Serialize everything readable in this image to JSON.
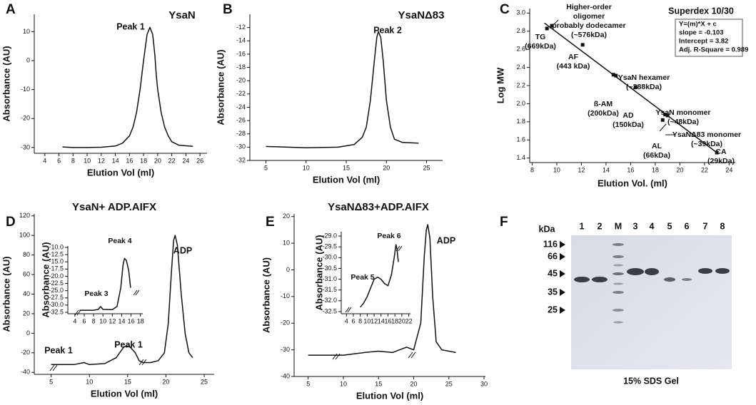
{
  "chart_data": [
    {
      "type": "line",
      "panel_label": "A",
      "title": "YsaN",
      "annotations": [
        "Peak 1"
      ],
      "xlabel": "Elution Vol (ml)",
      "ylabel": "Absorbance (AU)",
      "xlim": [
        2.5,
        27
      ],
      "ylim": [
        -32,
        16
      ],
      "xticks": [
        4,
        6,
        8,
        10,
        12,
        14,
        16,
        18,
        20,
        22,
        24,
        26
      ],
      "yticks": [
        -30,
        -20,
        -10,
        0,
        10
      ],
      "series": [
        {
          "type": "line",
          "color": "#111111",
          "x": [
            6.5,
            8,
            10,
            12,
            14,
            15,
            16,
            16.5,
            17,
            17.5,
            18,
            18.5,
            18.9,
            19.3,
            19.6,
            19.8,
            20,
            20.5,
            21,
            21.5,
            22,
            23,
            25
          ],
          "values": [
            -29.8,
            -30,
            -30,
            -29.9,
            -29.5,
            -28.5,
            -26,
            -23,
            -18,
            -10,
            0,
            9,
            11.5,
            9,
            2,
            -5,
            -10,
            -18,
            -23,
            -26,
            -28,
            -29.2,
            -29.6
          ]
        }
      ]
    },
    {
      "type": "line",
      "panel_label": "B",
      "title": "YsaNΔ83",
      "annotations": [
        "Peak 2"
      ],
      "xlabel": "Elution Vol (ml)",
      "ylabel": "Absorbance (AU)",
      "xlim": [
        3,
        27
      ],
      "ylim": [
        -32,
        -10
      ],
      "xticks": [
        5,
        10,
        15,
        20,
        25
      ],
      "yticks": [
        -32,
        -30,
        -28,
        -26,
        -24,
        -22,
        -20,
        -18,
        -16,
        -14,
        -12
      ],
      "series": [
        {
          "type": "line",
          "color": "#111111",
          "x": [
            5,
            10,
            14,
            16,
            17,
            17.5,
            18,
            18.5,
            18.8,
            19,
            19.3,
            19.6,
            20,
            20.5,
            21,
            22,
            24
          ],
          "values": [
            -29.9,
            -30.1,
            -30,
            -29.6,
            -28.5,
            -27,
            -23,
            -17,
            -13.5,
            -12.6,
            -13.5,
            -17,
            -23,
            -27,
            -28.8,
            -29.3,
            -29.4
          ]
        }
      ]
    },
    {
      "type": "scatter",
      "panel_label": "C",
      "title": "Superdex 10/30",
      "fit_box": [
        "Y=(m)*X + c",
        "slope = -0.103",
        "Intercept = 3.82",
        "Adj. R-Square = 0.989"
      ],
      "xlabel": "Elution Vol. (ml)",
      "ylabel": "Log MW",
      "xlim": [
        7.8,
        24.5
      ],
      "ylim": [
        1.35,
        3.05
      ],
      "xticks": [
        8,
        10,
        12,
        14,
        16,
        18,
        20,
        22,
        24
      ],
      "yticks": [
        1.4,
        1.6,
        1.8,
        {
          "value": 2,
          "label": "2.0"
        },
        2.2,
        2.4,
        2.6,
        2.8,
        {
          "value": 3,
          "label": "3.0"
        }
      ],
      "series": [
        {
          "type": "scatter",
          "color": "#111111",
          "x": [
            9.2,
            9.6,
            12.1,
            14.6,
            14.8,
            16.4,
            18.6,
            18.8,
            19.0,
            23.0
          ],
          "values": [
            2.83,
            2.86,
            2.65,
            2.32,
            2.31,
            2.18,
            1.82,
            1.88,
            1.87,
            1.46
          ]
        },
        {
          "type": "line",
          "color": "#111111",
          "x": [
            9,
            23
          ],
          "values": [
            2.89,
            1.46
          ]
        }
      ],
      "point_labels": [
        [
          "Higher-order",
          "oligomer",
          "probably dodecamer",
          "(~576kDa)"
        ],
        [
          "TG",
          "(669kDa)"
        ],
        [
          "AF",
          "(443 kDa)"
        ],
        [
          "YsaN hexamer",
          "(~288kDa)"
        ],
        [
          "ß-AM",
          "(200kDa)"
        ],
        [
          "AD",
          "(150kDa)"
        ],
        [
          "YsaN monomer",
          "(~48kDa)"
        ],
        [
          "YsaNΔ83 monomer",
          "(~39kDa)"
        ],
        [
          "AL",
          "(66kDa)"
        ],
        [
          "CA",
          "(29kDa)"
        ]
      ]
    },
    {
      "type": "line",
      "panel_label": "D",
      "title": "YsaN+ ADP.AIFX",
      "annotations": [
        "ADP",
        "Peak 1",
        "Peak 1"
      ],
      "xlabel": "Elution Vol (ml)",
      "ylabel": "Absorbance (AU)",
      "xlim": [
        2.8,
        26.3
      ],
      "ylim": [
        -42,
        122
      ],
      "xticks": [
        5,
        10,
        15,
        20,
        25
      ],
      "yticks": [
        -40,
        -20,
        0,
        20,
        40,
        60,
        80,
        100,
        120
      ],
      "series": [
        {
          "type": "line",
          "color": "#111111",
          "x": [
            5,
            8,
            9.3,
            10,
            12,
            13.5,
            14.5,
            15.2,
            16,
            16.5,
            17,
            18,
            19,
            19.8,
            20.3,
            20.7,
            21,
            21.2,
            21.5,
            22,
            22.5,
            23,
            23.5
          ],
          "values": [
            -32,
            -32,
            -30,
            -32,
            -31,
            -25,
            -14,
            -13,
            -20,
            -28,
            -30,
            -30,
            -28,
            -20,
            10,
            60,
            95,
            100,
            90,
            40,
            0,
            -20,
            -25
          ]
        }
      ],
      "inset": {
        "type": "line",
        "annotations": [
          "Peak 4",
          "Peak 3"
        ],
        "ylabel": "Absorbance (AU)",
        "xlim": [
          2.5,
          18.5
        ],
        "ylim": [
          -33,
          -9.5
        ],
        "xticks": [
          4,
          6,
          8,
          10,
          12,
          14,
          16,
          18
        ],
        "yticks": [
          {
            "value": -32.5,
            "label": "-32.5"
          },
          {
            "value": -30,
            "label": "-30.0"
          },
          {
            "value": -27.5,
            "label": "-27.5"
          },
          {
            "value": -25,
            "label": "-25.0"
          },
          {
            "value": -22.5,
            "label": "-22.5"
          },
          {
            "value": -20,
            "label": "-20.0"
          },
          {
            "value": -17.5,
            "label": "-17.5"
          },
          {
            "value": -15,
            "label": "-15.0"
          },
          {
            "value": -12.5,
            "label": "-12.5"
          },
          {
            "value": -10,
            "label": "-10.0"
          }
        ],
        "series": [
          {
            "type": "line",
            "color": "#111111",
            "x": [
              5,
              8,
              9,
              9.5,
              10,
              12,
              13,
              13.8,
              14.3,
              14.6,
              15,
              15.5,
              15.9
            ],
            "values": [
              -31.8,
              -31.8,
              -31.5,
              -30.5,
              -31.5,
              -31.6,
              -30.5,
              -24,
              -16,
              -13.8,
              -14.5,
              -18,
              -24
            ]
          }
        ]
      }
    },
    {
      "type": "line",
      "panel_label": "E",
      "title": "YsaNΔ83+ADP.AIFX",
      "annotations": [
        "ADP"
      ],
      "xlabel": "Elution Vol (ml)",
      "ylabel": "Absorbance (AU)",
      "xlim": [
        3,
        30.2
      ],
      "ylim": [
        -40,
        21
      ],
      "xticks": [
        5,
        10,
        15,
        20,
        25,
        30
      ],
      "yticks": [
        -40,
        -30,
        -20,
        -10,
        0,
        10,
        20
      ],
      "series": [
        {
          "type": "line",
          "color": "#111111",
          "x": [
            5,
            10,
            13,
            15,
            17,
            18,
            19,
            20,
            21,
            21.5,
            21.8,
            22,
            22.3,
            22.7,
            23.2,
            24,
            26
          ],
          "values": [
            -32,
            -32,
            -31,
            -30.5,
            -31,
            -30,
            -29,
            -30,
            -20,
            5,
            15,
            17,
            12,
            -10,
            -27,
            -30,
            -31
          ]
        }
      ],
      "inset": {
        "type": "line",
        "annotations": [
          "Peak 6",
          "Peak 5"
        ],
        "ylabel": "Absorbance (AU)",
        "xlim": [
          2.5,
          22.5
        ],
        "ylim": [
          -32.6,
          -28.8
        ],
        "xticks": [
          4,
          6,
          8,
          10,
          12,
          14,
          16,
          18,
          20,
          22
        ],
        "yticks": [
          {
            "value": -32.5,
            "label": "-32.5"
          },
          {
            "value": -32,
            "label": "-32.0"
          },
          {
            "value": -31.5,
            "label": "-31.5"
          },
          {
            "value": -31,
            "label": "-31.0"
          },
          {
            "value": -30.5,
            "label": "-30.5"
          },
          {
            "value": -30,
            "label": "-30.0"
          },
          {
            "value": -29.5,
            "label": "-29.5"
          },
          {
            "value": -29,
            "label": "-29.0"
          }
        ],
        "series": [
          {
            "type": "line",
            "color": "#111111",
            "x": [
              8,
              9,
              10,
              11,
              12,
              13,
              14,
              15,
              16,
              17,
              17.8,
              18.3,
              18.6,
              19
            ],
            "values": [
              -32.3,
              -32.1,
              -31.8,
              -31.4,
              -31.0,
              -30.9,
              -31.0,
              -31.2,
              -31.3,
              -30.8,
              -30.0,
              -29.4,
              -29.6,
              -30.2
            ]
          }
        ]
      }
    }
  ],
  "gel": {
    "panel_label": "F",
    "unit": "kDa",
    "lanes": [
      "1",
      "2",
      "M",
      "3",
      "4",
      "5",
      "6",
      "7",
      "8"
    ],
    "markers": [
      116,
      66,
      45,
      35,
      25
    ],
    "caption": "15% SDS Gel"
  }
}
